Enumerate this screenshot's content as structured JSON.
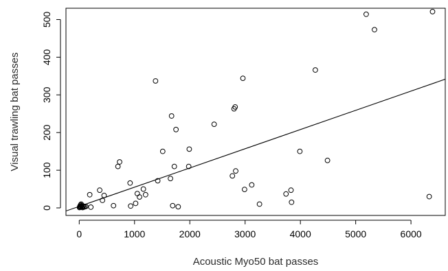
{
  "chart_data": {
    "type": "scatter",
    "title": "",
    "xlabel": "Acoustic Myo50 bat passes",
    "ylabel": "Visual trawling bat passes",
    "xlim": [
      -240,
      6620
    ],
    "ylim": [
      -20,
      530
    ],
    "xticks": [
      0,
      1000,
      2000,
      3000,
      4000,
      5000,
      6000
    ],
    "yticks": [
      0,
      100,
      200,
      300,
      400,
      500
    ],
    "grid": false,
    "legend": "none",
    "marker": "open-circle",
    "colors": {
      "marker": "#000000",
      "line": "#000000",
      "frame": "#000000"
    },
    "points": [
      [
        5,
        1
      ],
      [
        10,
        3
      ],
      [
        15,
        5
      ],
      [
        20,
        2
      ],
      [
        25,
        8
      ],
      [
        30,
        4
      ],
      [
        35,
        10
      ],
      [
        40,
        6
      ],
      [
        50,
        3
      ],
      [
        60,
        1
      ],
      [
        70,
        5
      ],
      [
        80,
        2
      ],
      [
        100,
        3
      ],
      [
        120,
        4
      ],
      [
        190,
        35
      ],
      [
        210,
        2
      ],
      [
        370,
        47
      ],
      [
        420,
        20
      ],
      [
        450,
        33
      ],
      [
        620,
        6
      ],
      [
        700,
        110
      ],
      [
        730,
        122
      ],
      [
        920,
        66
      ],
      [
        930,
        5
      ],
      [
        1020,
        12
      ],
      [
        1050,
        38
      ],
      [
        1090,
        29
      ],
      [
        1160,
        50
      ],
      [
        1200,
        35
      ],
      [
        1380,
        337
      ],
      [
        1420,
        72
      ],
      [
        1510,
        150
      ],
      [
        1650,
        78
      ],
      [
        1670,
        244
      ],
      [
        1690,
        6
      ],
      [
        1720,
        110
      ],
      [
        1750,
        208
      ],
      [
        1790,
        3
      ],
      [
        1980,
        110
      ],
      [
        1990,
        156
      ],
      [
        2440,
        222
      ],
      [
        2770,
        85
      ],
      [
        2800,
        263
      ],
      [
        2820,
        268
      ],
      [
        2830,
        98
      ],
      [
        2960,
        344
      ],
      [
        2990,
        49
      ],
      [
        3120,
        61
      ],
      [
        3260,
        10
      ],
      [
        3740,
        37
      ],
      [
        3830,
        47
      ],
      [
        3840,
        15
      ],
      [
        3990,
        150
      ],
      [
        4270,
        366
      ],
      [
        4490,
        126
      ],
      [
        5190,
        514
      ],
      [
        5340,
        473
      ],
      [
        6330,
        30
      ],
      [
        6390,
        521
      ]
    ],
    "regression_line": {
      "intercept": 4,
      "slope": 0.051
    }
  }
}
